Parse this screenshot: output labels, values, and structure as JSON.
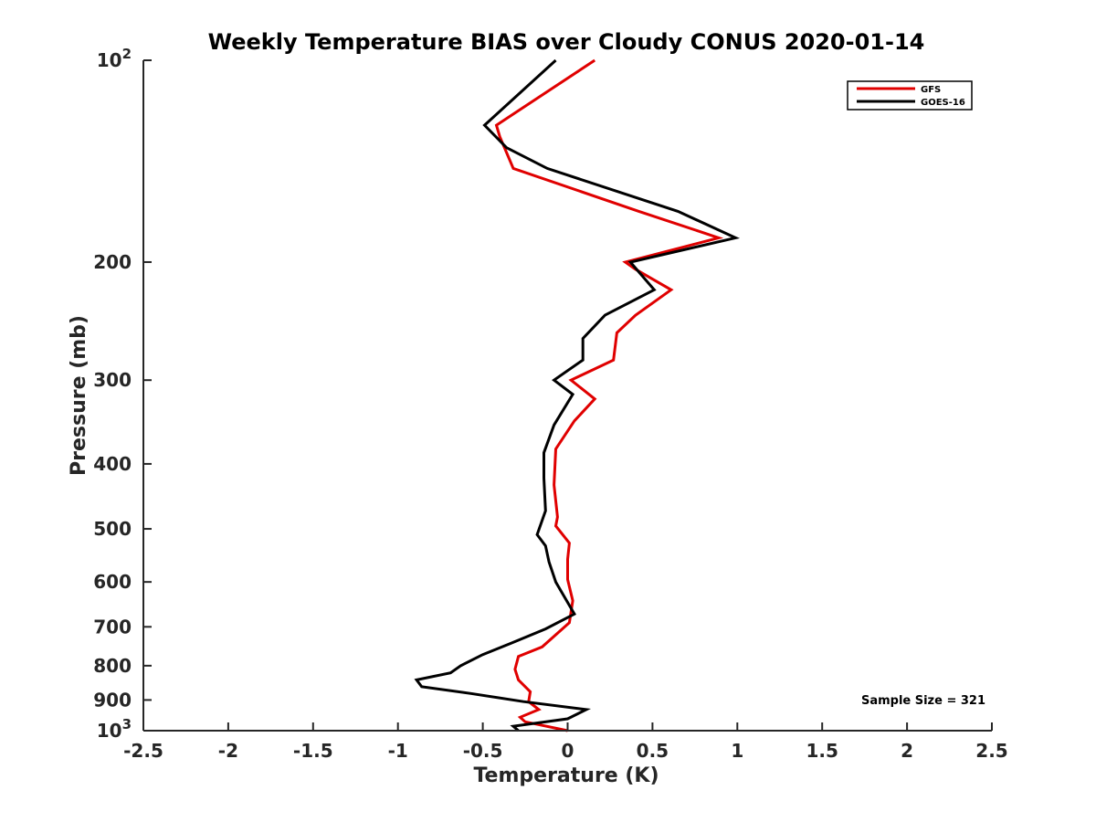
{
  "chart_data": {
    "type": "line",
    "title": "Weekly Temperature BIAS over Cloudy CONUS 2020-01-14",
    "xlabel": "Temperature (K)",
    "ylabel": "Pressure (mb)",
    "xlim": [
      -2.5,
      2.5
    ],
    "ylim": [
      100,
      1000
    ],
    "y_scale": "log",
    "y_reversed": true,
    "x_ticks": [
      -2.5,
      -2,
      -1.5,
      -1,
      -0.5,
      0,
      0.5,
      1,
      1.5,
      2,
      2.5
    ],
    "x_tick_labels": [
      "-2.5",
      "-2",
      "-1.5",
      "-1",
      "-0.5",
      "0",
      "0.5",
      "1",
      "1.5",
      "2",
      "2.5"
    ],
    "y_ticks_plain": [
      {
        "value": 200,
        "label": "200"
      },
      {
        "value": 300,
        "label": "300"
      },
      {
        "value": 400,
        "label": "400"
      },
      {
        "value": 500,
        "label": "500"
      },
      {
        "value": 600,
        "label": "600"
      },
      {
        "value": 700,
        "label": "700"
      },
      {
        "value": 800,
        "label": "800"
      },
      {
        "value": 900,
        "label": "900"
      }
    ],
    "y_ticks_power": [
      {
        "value": 100,
        "base": "10",
        "exp": "2"
      },
      {
        "value": 1000,
        "base": "10",
        "exp": "3"
      }
    ],
    "legend_position": "top-right",
    "grid": false,
    "series": [
      {
        "name": "GFS",
        "color": "#e00000",
        "points": [
          [
            0.16,
            100
          ],
          [
            -0.42,
            125
          ],
          [
            -0.4,
            130
          ],
          [
            -0.32,
            145
          ],
          [
            0.42,
            168
          ],
          [
            0.89,
            184
          ],
          [
            0.34,
            200
          ],
          [
            0.4,
            205
          ],
          [
            0.61,
            220
          ],
          [
            0.4,
            240
          ],
          [
            0.29,
            255
          ],
          [
            0.27,
            280
          ],
          [
            0.02,
            300
          ],
          [
            0.16,
            320
          ],
          [
            0.04,
            345
          ],
          [
            -0.07,
            380
          ],
          [
            -0.08,
            430
          ],
          [
            -0.06,
            480
          ],
          [
            -0.07,
            495
          ],
          [
            0.01,
            525
          ],
          [
            0.0,
            555
          ],
          [
            0.0,
            595
          ],
          [
            0.03,
            640
          ],
          [
            0.01,
            690
          ],
          [
            -0.15,
            750
          ],
          [
            -0.29,
            775
          ],
          [
            -0.31,
            810
          ],
          [
            -0.29,
            840
          ],
          [
            -0.22,
            875
          ],
          [
            -0.23,
            905
          ],
          [
            -0.17,
            930
          ],
          [
            -0.28,
            955
          ],
          [
            -0.25,
            970
          ],
          [
            0.0,
            1000
          ]
        ]
      },
      {
        "name": "GOES-16",
        "color": "#000000",
        "points": [
          [
            -0.07,
            100
          ],
          [
            -0.49,
            125
          ],
          [
            -0.36,
            135
          ],
          [
            -0.12,
            145
          ],
          [
            0.65,
            168
          ],
          [
            0.99,
            184
          ],
          [
            0.37,
            200
          ],
          [
            0.51,
            220
          ],
          [
            0.22,
            240
          ],
          [
            0.09,
            260
          ],
          [
            0.09,
            280
          ],
          [
            -0.08,
            300
          ],
          [
            0.03,
            315
          ],
          [
            -0.08,
            350
          ],
          [
            -0.14,
            385
          ],
          [
            -0.14,
            420
          ],
          [
            -0.13,
            470
          ],
          [
            -0.18,
            510
          ],
          [
            -0.13,
            530
          ],
          [
            -0.11,
            560
          ],
          [
            -0.07,
            600
          ],
          [
            0.04,
            670
          ],
          [
            -0.13,
            705
          ],
          [
            -0.33,
            740
          ],
          [
            -0.5,
            770
          ],
          [
            -0.63,
            800
          ],
          [
            -0.69,
            820
          ],
          [
            -0.89,
            840
          ],
          [
            -0.86,
            860
          ],
          [
            -0.57,
            880
          ],
          [
            -0.26,
            905
          ],
          [
            0.11,
            930
          ],
          [
            0.0,
            960
          ],
          [
            -0.32,
            985
          ],
          [
            -0.29,
            1000
          ]
        ]
      }
    ],
    "annotation": "Sample Size = 321"
  }
}
